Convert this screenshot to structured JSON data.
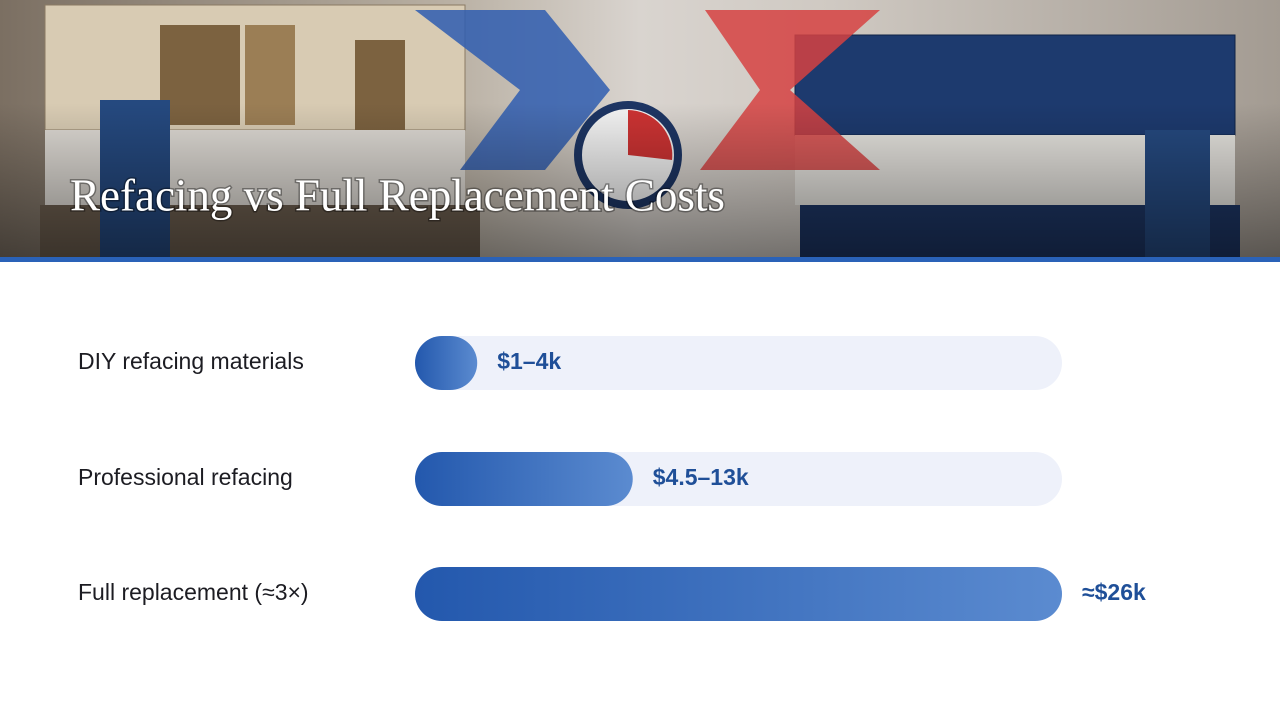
{
  "chart_data": {
    "type": "bar",
    "orientation": "horizontal",
    "title": "Refacing vs Full Replacement Costs",
    "categories": [
      "DIY refacing materials",
      "Professional refacing",
      "Full replacement (≈3×)"
    ],
    "values": [
      2.5,
      8.75,
      26
    ],
    "value_labels": [
      "$1–4k",
      "$4.5–13k",
      "≈$26k"
    ],
    "xlim": [
      0,
      26
    ],
    "color": "#2a60b2"
  }
}
